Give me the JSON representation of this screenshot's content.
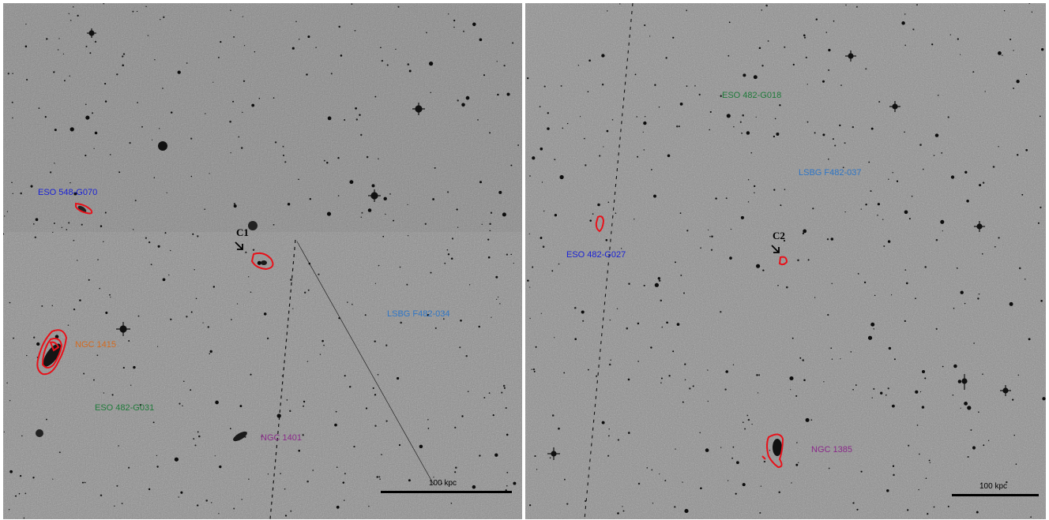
{
  "panels": [
    {
      "id": "left",
      "labels": {
        "eso548": "ESO 548-G070",
        "ngc1415": "NGC 1415",
        "eso482g031": "ESO 482-G031",
        "ngc1401": "NGC 1401",
        "lsbg034": "LSBG F482-034",
        "c1": "C1"
      },
      "scale": "100 kpc"
    },
    {
      "id": "right",
      "labels": {
        "eso482g018": "ESO 482-G018",
        "lsbg037": "LSBG F482-037",
        "eso482g027": "ESO 482-G027",
        "c2": "C2",
        "ngc1385": "NGC 1385"
      },
      "scale": "100 kpc"
    }
  ],
  "colors": {
    "contour": "#e8111a",
    "blue": "#1a22d6",
    "lightblue": "#2f76c6",
    "orange": "#d46a1f",
    "green": "#1f7a3a",
    "purple": "#8a2a8a"
  }
}
